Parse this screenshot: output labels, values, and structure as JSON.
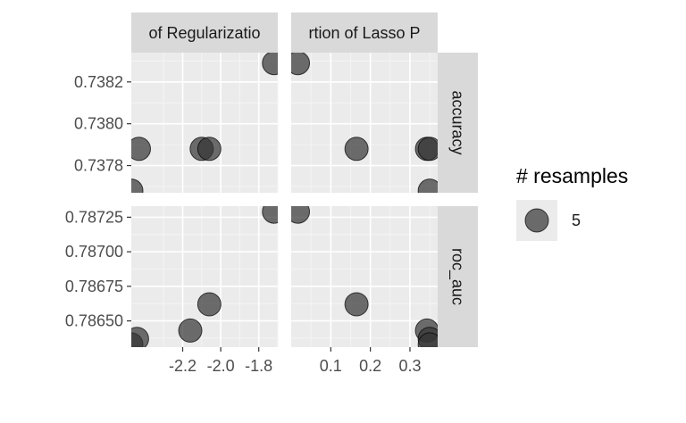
{
  "chart_data": {
    "type": "scatter",
    "facets": {
      "columns": [
        "of Regularizatio",
        "rtion of Lasso P"
      ],
      "rows": [
        "accuracy",
        "roc_auc"
      ]
    },
    "x_axes": [
      {
        "ticks": [
          -2.2,
          -2.0,
          -1.8
        ],
        "tick_labels": [
          "-2.2",
          "-2.0",
          "-1.8"
        ],
        "xlim": [
          -2.47,
          -1.7
        ]
      },
      {
        "ticks": [
          0.1,
          0.2,
          0.3
        ],
        "tick_labels": [
          "0.1",
          "0.2",
          "0.3"
        ],
        "xlim": [
          0.0,
          0.37
        ]
      }
    ],
    "y_axes": [
      {
        "ticks": [
          0.7378,
          0.738,
          0.7382
        ],
        "tick_labels": [
          "0.7378",
          "0.7380",
          "0.7382"
        ],
        "ylim": [
          0.73767,
          0.73834
        ]
      },
      {
        "ticks": [
          0.7865,
          0.78675,
          0.787,
          0.78725
        ],
        "tick_labels": [
          "0.78650",
          "0.78675",
          "0.78700",
          "0.78725"
        ],
        "ylim": [
          0.78631,
          0.78733
        ]
      }
    ],
    "panels": [
      {
        "row": 0,
        "col": 0,
        "points": [
          [
            -2.47,
            0.73768
          ],
          [
            -2.43,
            0.73788
          ],
          [
            -2.1,
            0.73788
          ],
          [
            -2.06,
            0.73788
          ],
          [
            -1.72,
            0.73829
          ]
        ]
      },
      {
        "row": 0,
        "col": 1,
        "points": [
          [
            0.017,
            0.73829
          ],
          [
            0.165,
            0.73788
          ],
          [
            0.343,
            0.73788
          ],
          [
            0.35,
            0.73788
          ],
          [
            0.35,
            0.73768
          ]
        ]
      },
      {
        "row": 1,
        "col": 0,
        "points": [
          [
            -2.47,
            0.78633
          ],
          [
            -2.44,
            0.78637
          ],
          [
            -2.16,
            0.78643
          ],
          [
            -2.06,
            0.78662
          ],
          [
            -1.72,
            0.78729
          ]
        ]
      },
      {
        "row": 1,
        "col": 1,
        "points": [
          [
            0.017,
            0.78729
          ],
          [
            0.165,
            0.78662
          ],
          [
            0.343,
            0.78643
          ],
          [
            0.35,
            0.78637
          ],
          [
            0.35,
            0.78633
          ]
        ]
      }
    ],
    "point_color": "#333333",
    "point_alpha": 0.7,
    "grid": true,
    "legend": {
      "title": "# resamples",
      "entries": [
        "5"
      ],
      "position": "right"
    }
  }
}
